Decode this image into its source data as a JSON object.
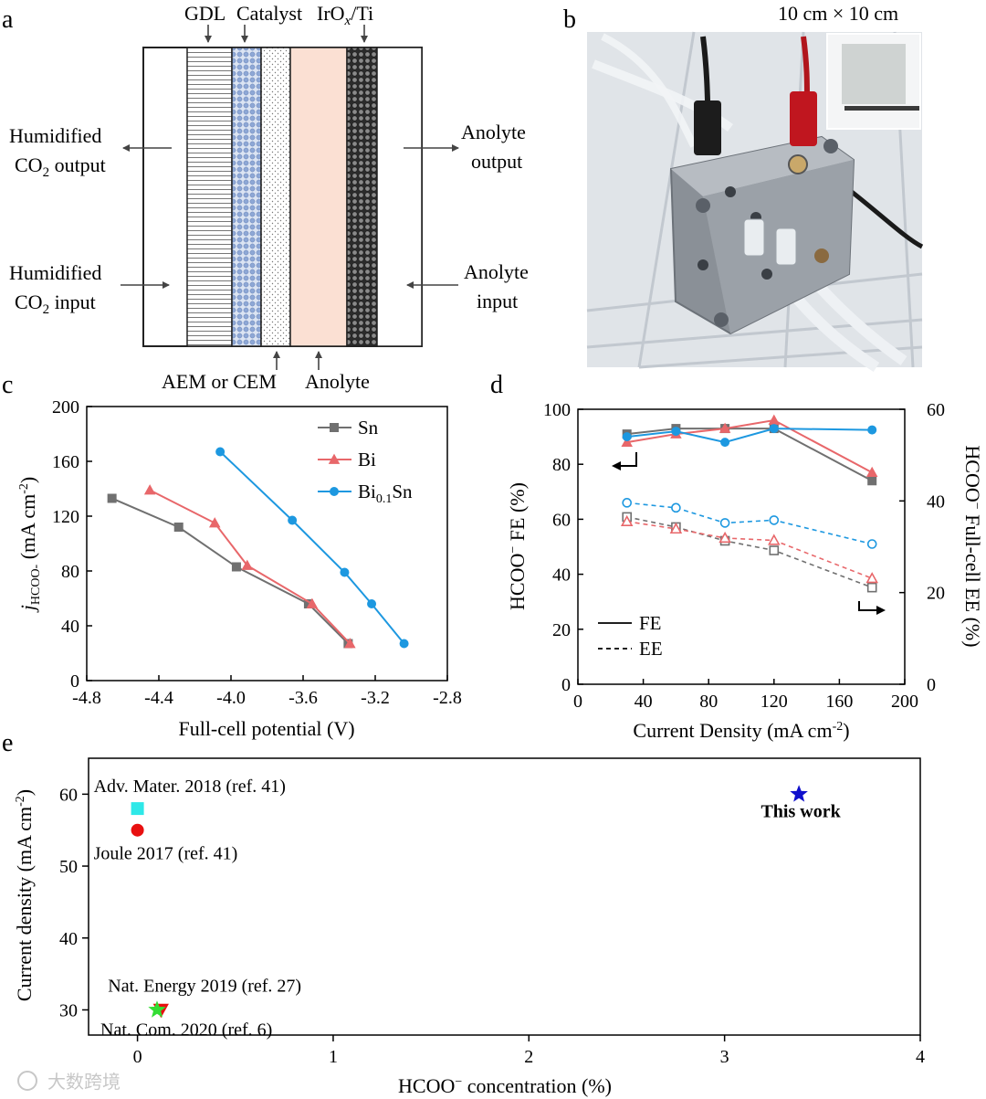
{
  "panel_labels": {
    "a": "a",
    "b": "b",
    "c": "c",
    "d": "d",
    "e": "e"
  },
  "colors": {
    "sn": "#707070",
    "bi": "#e8676a",
    "bisn": "#1d98e0",
    "gdl": "#ffffff",
    "catalyst": "#9db4db",
    "membrane": "#ffffff",
    "anolyte": "#fbe0d3",
    "irox": "#3a3a3a"
  },
  "panel_a": {
    "top_labels": {
      "gdl": "GDL",
      "catalyst": "Catalyst",
      "irox_main": "IrO",
      "irox_sub": "x",
      "irox_tail": "/Ti"
    },
    "bottom_labels": {
      "membrane": "AEM or CEM",
      "anolyte": "Anolyte"
    },
    "left_output": {
      "line1": "Humidified",
      "line2_main": "CO",
      "line2_sub": "2",
      "line2_tail": " output"
    },
    "left_input": {
      "line1": "Humidified",
      "line2_main": "CO",
      "line2_sub": "2",
      "line2_tail": " input"
    },
    "right_output": {
      "line1": "Anolyte",
      "line2": "output"
    },
    "right_input": {
      "line1": "Anolyte",
      "line2": "input"
    }
  },
  "panel_b": {
    "size_caption": "10 cm × 10 cm"
  },
  "watermark": "大数跨境",
  "chart_data": [
    {
      "id": "c",
      "type": "line",
      "xlabel": "Full-cell potential (V)",
      "ylabel_main": "j",
      "ylabel_sub": "HCOO-",
      "ylabel_unit": " (mA cm",
      "ylabel_exp": "-2",
      "ylabel_close": ")",
      "xlim": [
        -4.8,
        -2.8
      ],
      "ylim": [
        0,
        200
      ],
      "xticks": [
        -4.8,
        -4.4,
        -4.0,
        -3.6,
        -3.2,
        -2.8
      ],
      "xtick_labels": [
        "-4.8",
        "-4.4",
        "-4.0",
        "-3.6",
        "-3.2",
        "-2.8"
      ],
      "yticks": [
        0,
        40,
        80,
        120,
        160,
        200
      ],
      "ytick_labels": [
        "0",
        "40",
        "80",
        "120",
        "160",
        "200"
      ],
      "legend_position": "top-right",
      "series": [
        {
          "name": "Sn",
          "name_sub": "",
          "name_tail": "",
          "marker": "square",
          "color": "#707070",
          "x": [
            -4.66,
            -4.29,
            -3.97,
            -3.57,
            -3.35
          ],
          "y": [
            133,
            112,
            83,
            56,
            27
          ]
        },
        {
          "name": "Bi",
          "name_sub": "",
          "name_tail": "",
          "marker": "triangle",
          "color": "#e8676a",
          "x": [
            -4.45,
            -4.09,
            -3.91,
            -3.55,
            -3.34
          ],
          "y": [
            139,
            115,
            84,
            56,
            27
          ]
        },
        {
          "name": "Bi",
          "name_sub": "0.1",
          "name_tail": "Sn",
          "marker": "circle",
          "color": "#1d98e0",
          "x": [
            -4.06,
            -3.66,
            -3.37,
            -3.22,
            -3.04
          ],
          "y": [
            167,
            117,
            79,
            56,
            27
          ]
        }
      ]
    },
    {
      "id": "d",
      "type": "line",
      "xlabel": "Current Density (mA cm",
      "xlabel_exp": "-2",
      "xlabel_close": ")",
      "ylabel_left": "HCOO",
      "ylabel_left_sup": "−",
      "ylabel_left_tail": " FE (%)",
      "ylabel_right": "HCOO",
      "ylabel_right_sup": "−",
      "ylabel_right_tail": " Full-cell EE (%)",
      "xlim": [
        0,
        200
      ],
      "ylim_left": [
        0,
        100
      ],
      "ylim_right": [
        0,
        60
      ],
      "xticks": [
        0,
        40,
        80,
        120,
        160,
        200
      ],
      "xtick_labels": [
        "0",
        "40",
        "80",
        "120",
        "160",
        "200"
      ],
      "yticks_left": [
        0,
        20,
        40,
        60,
        80,
        100
      ],
      "ytick_labels_left": [
        "0",
        "20",
        "40",
        "60",
        "80",
        "100"
      ],
      "yticks_right": [
        0,
        20,
        40,
        60
      ],
      "ytick_labels_right": [
        "0",
        "20",
        "40",
        "60"
      ],
      "legend": [
        {
          "label": "FE",
          "style": "solid"
        },
        {
          "label": "EE",
          "style": "dashed"
        }
      ],
      "x": [
        30,
        60,
        90,
        120,
        180
      ],
      "fe_series": [
        {
          "name": "Sn",
          "marker": "square",
          "color": "#707070",
          "values": [
            91,
            93,
            93,
            93,
            74
          ]
        },
        {
          "name": "Bi",
          "marker": "triangle",
          "color": "#e8676a",
          "values": [
            88,
            91,
            93,
            96,
            77
          ]
        },
        {
          "name": "Bi0.1Sn",
          "marker": "circle",
          "color": "#1d98e0",
          "values": [
            90,
            92,
            88,
            93,
            92.5
          ]
        }
      ],
      "ee_series": [
        {
          "name": "Sn",
          "marker": "square",
          "color": "#707070",
          "values": [
            36.5,
            34.3,
            31.3,
            29.2,
            21.1
          ]
        },
        {
          "name": "Bi",
          "marker": "triangle",
          "color": "#e8676a",
          "values": [
            35.5,
            33.9,
            31.9,
            31.4,
            23.1
          ]
        },
        {
          "name": "Bi0.1Sn",
          "marker": "circle",
          "color": "#1d98e0",
          "values": [
            39.6,
            38.5,
            35.2,
            35.8,
            30.6
          ]
        }
      ]
    },
    {
      "id": "e",
      "type": "scatter",
      "xlabel": "HCOO",
      "xlabel_sup": "−",
      "xlabel_tail": " concentration (%)",
      "ylabel": "Current density (mA cm",
      "ylabel_exp": "-2",
      "ylabel_close": ")",
      "xlim": [
        -0.25,
        4
      ],
      "ylim": [
        26.5,
        65
      ],
      "xticks": [
        0,
        1,
        2,
        3,
        4
      ],
      "xtick_labels": [
        "0",
        "1",
        "2",
        "3",
        "4"
      ],
      "yticks": [
        30,
        40,
        50,
        60
      ],
      "ytick_labels": [
        "30",
        "40",
        "50",
        "60"
      ],
      "points": [
        {
          "label": "Adv. Mater. 2018 (ref. 41)",
          "x": 0.0,
          "y": 58,
          "marker": "square",
          "color": "#2ee8e8",
          "bold": false
        },
        {
          "label": "Joule 2017 (ref. 41)",
          "x": 0.0,
          "y": 55,
          "marker": "circle",
          "color": "#e81010",
          "bold": false
        },
        {
          "label": "Nat. Energy 2019 (ref. 27)",
          "x": 0.12,
          "y": 30,
          "marker": "triangle-down",
          "color": "#e81010",
          "bold": false
        },
        {
          "label": "Nat. Com. 2020 (ref. 6)",
          "x": 0.1,
          "y": 30,
          "marker": "star",
          "color": "#33dd33",
          "bold": false
        },
        {
          "label": "This work",
          "x": 3.38,
          "y": 60,
          "marker": "star",
          "color": "#1010cc",
          "bold": true
        }
      ]
    }
  ]
}
